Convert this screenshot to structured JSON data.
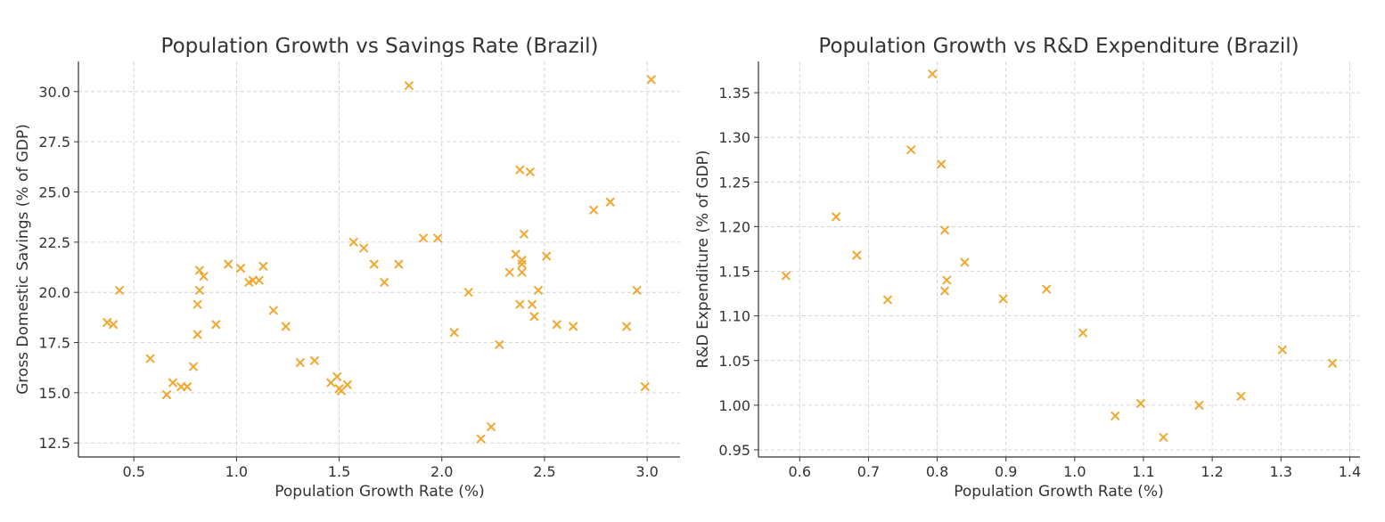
{
  "marker_color": "#f0a830",
  "marker_icon": "x-marker",
  "chart_data": [
    {
      "type": "scatter",
      "title": "Population Growth vs Savings Rate (Brazil)",
      "xlabel": "Population Growth Rate (%)",
      "ylabel": "Gross Domestic Savings (% of GDP)",
      "xlim": [
        0.23,
        3.16
      ],
      "ylim": [
        11.8,
        31.5
      ],
      "xticks": [
        0.5,
        1.0,
        1.5,
        2.0,
        2.5,
        3.0
      ],
      "xtick_labels": [
        "0.5",
        "1.0",
        "1.5",
        "2.0",
        "2.5",
        "3.0"
      ],
      "yticks": [
        12.5,
        15.0,
        17.5,
        20.0,
        22.5,
        25.0,
        27.5,
        30.0
      ],
      "ytick_labels": [
        "12.5",
        "15.0",
        "17.5",
        "20.0",
        "22.5",
        "25.0",
        "27.5",
        "30.0"
      ],
      "grid": true,
      "points": [
        [
          0.37,
          18.5
        ],
        [
          0.4,
          18.4
        ],
        [
          0.43,
          20.1
        ],
        [
          0.58,
          16.7
        ],
        [
          0.66,
          14.9
        ],
        [
          0.69,
          15.5
        ],
        [
          0.73,
          15.3
        ],
        [
          0.76,
          15.3
        ],
        [
          0.79,
          16.3
        ],
        [
          0.81,
          17.9
        ],
        [
          0.81,
          19.4
        ],
        [
          0.82,
          20.1
        ],
        [
          0.82,
          21.1
        ],
        [
          0.84,
          20.8
        ],
        [
          0.9,
          18.4
        ],
        [
          0.96,
          21.4
        ],
        [
          1.02,
          21.2
        ],
        [
          1.06,
          20.5
        ],
        [
          1.08,
          20.6
        ],
        [
          1.11,
          20.6
        ],
        [
          1.13,
          21.3
        ],
        [
          1.18,
          19.1
        ],
        [
          1.24,
          18.3
        ],
        [
          1.31,
          16.5
        ],
        [
          1.38,
          16.6
        ],
        [
          1.46,
          15.5
        ],
        [
          1.49,
          15.8
        ],
        [
          1.5,
          15.2
        ],
        [
          1.51,
          15.1
        ],
        [
          1.54,
          15.4
        ],
        [
          1.57,
          22.5
        ],
        [
          1.62,
          22.2
        ],
        [
          1.67,
          21.4
        ],
        [
          1.72,
          20.5
        ],
        [
          1.79,
          21.4
        ],
        [
          1.84,
          30.3
        ],
        [
          1.91,
          22.7
        ],
        [
          1.98,
          22.7
        ],
        [
          2.06,
          18.0
        ],
        [
          2.13,
          20.0
        ],
        [
          2.19,
          12.7
        ],
        [
          2.24,
          13.3
        ],
        [
          2.28,
          17.4
        ],
        [
          2.33,
          21.0
        ],
        [
          2.36,
          21.9
        ],
        [
          2.38,
          26.1
        ],
        [
          2.38,
          19.4
        ],
        [
          2.39,
          21.0
        ],
        [
          2.39,
          21.6
        ],
        [
          2.39,
          21.4
        ],
        [
          2.4,
          22.9
        ],
        [
          2.43,
          26.0
        ],
        [
          2.44,
          19.4
        ],
        [
          2.45,
          18.8
        ],
        [
          2.47,
          20.1
        ],
        [
          2.51,
          21.8
        ],
        [
          2.56,
          18.4
        ],
        [
          2.64,
          18.3
        ],
        [
          2.74,
          24.1
        ],
        [
          2.82,
          24.5
        ],
        [
          2.9,
          18.3
        ],
        [
          2.95,
          20.1
        ],
        [
          2.99,
          15.3
        ],
        [
          3.02,
          30.6
        ]
      ]
    },
    {
      "type": "scatter",
      "title": "Population Growth vs R&D Expenditure (Brazil)",
      "xlabel": "Population Growth Rate (%)",
      "ylabel": "R&D Expenditure (% of GDP)",
      "xlim": [
        0.54,
        1.415
      ],
      "ylim": [
        0.942,
        1.385
      ],
      "xticks": [
        0.6,
        0.7,
        0.8,
        0.9,
        1.0,
        1.1,
        1.2,
        1.3,
        1.4
      ],
      "xtick_labels": [
        "0.6",
        "0.7",
        "0.8",
        "0.9",
        "1.0",
        "1.1",
        "1.2",
        "1.3",
        "1.4"
      ],
      "yticks": [
        0.95,
        1.0,
        1.05,
        1.1,
        1.15,
        1.2,
        1.25,
        1.3,
        1.35
      ],
      "ytick_labels": [
        "0.95",
        "1.00",
        "1.05",
        "1.10",
        "1.15",
        "1.20",
        "1.25",
        "1.30",
        "1.35"
      ],
      "grid": true,
      "points": [
        [
          0.58,
          1.145
        ],
        [
          0.653,
          1.211
        ],
        [
          0.683,
          1.168
        ],
        [
          0.728,
          1.118
        ],
        [
          0.762,
          1.286
        ],
        [
          0.793,
          1.371
        ],
        [
          0.806,
          1.27
        ],
        [
          0.811,
          1.196
        ],
        [
          0.811,
          1.128
        ],
        [
          0.814,
          1.14
        ],
        [
          0.84,
          1.16
        ],
        [
          0.896,
          1.119
        ],
        [
          0.959,
          1.13
        ],
        [
          1.012,
          1.081
        ],
        [
          1.059,
          0.988
        ],
        [
          1.096,
          1.002
        ],
        [
          1.129,
          0.964
        ],
        [
          1.181,
          1.0
        ],
        [
          1.242,
          1.01
        ],
        [
          1.302,
          1.062
        ],
        [
          1.375,
          1.047
        ]
      ]
    }
  ]
}
